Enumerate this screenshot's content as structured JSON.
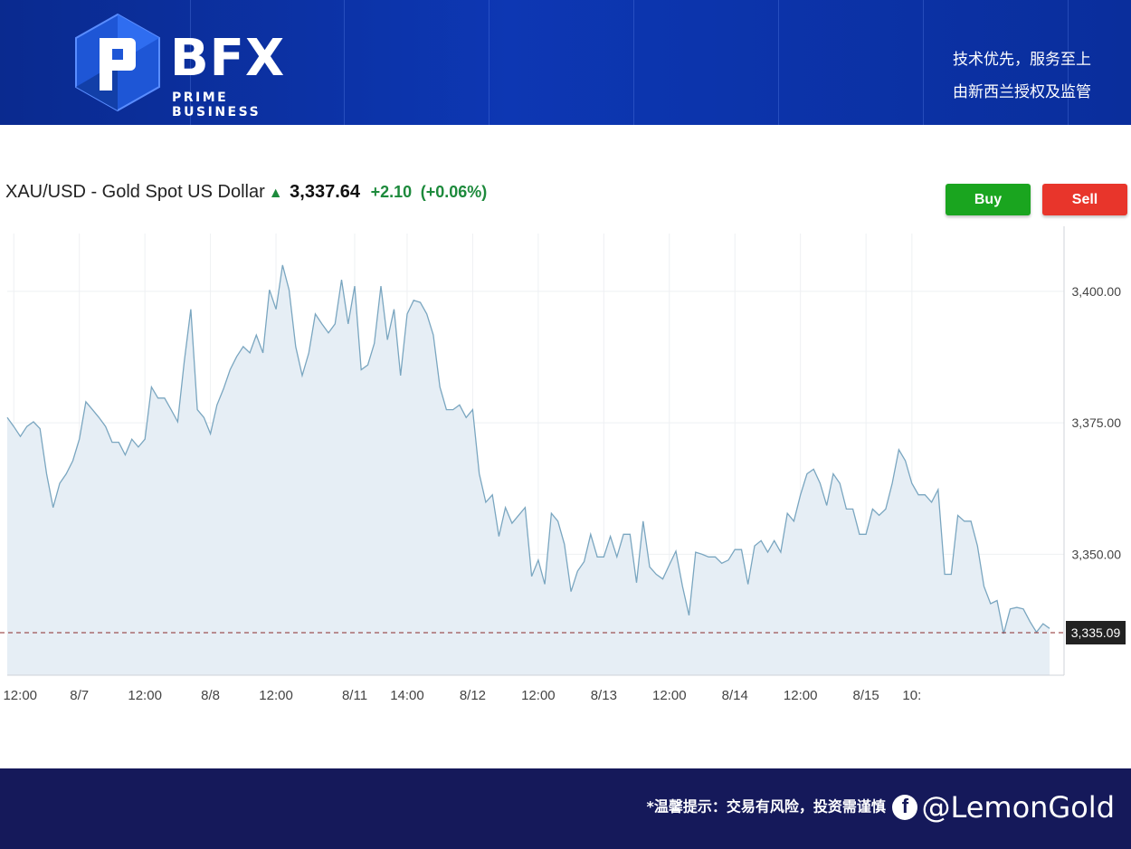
{
  "header": {
    "logo_text": "BFX",
    "logo_sub": "PRIME BUSINESS",
    "slogan_line1": "技术优先，服务至上",
    "slogan_line2": "由新西兰授权及监管"
  },
  "quote": {
    "symbol": "XAU/USD - Gold Spot US Dollar",
    "direction_icon": "up-arrow-icon",
    "price": "3,337.64",
    "change": "+2.10",
    "change_pct": "(+0.06%)",
    "up_color": "#1d8a3c"
  },
  "actions": {
    "buy_label": "Buy",
    "sell_label": "Sell",
    "buy_color": "#1aa51f",
    "sell_color": "#e8352b"
  },
  "chart_data": {
    "type": "area",
    "title": "XAU/USD - Gold Spot US Dollar",
    "y_axis_position": "right",
    "ylim": [
      3327,
      3411
    ],
    "yticks": [
      3350,
      3375,
      3400
    ],
    "ytick_labels": [
      "3,350.00",
      "3,375.00",
      "3,400.00"
    ],
    "xtick_labels": [
      "12:00",
      "8/7",
      "12:00",
      "8/8",
      "12:00",
      "8/11",
      "14:00",
      "8/12",
      "12:00",
      "8/13",
      "12:00",
      "8/14",
      "12:00",
      "8/15",
      "10:"
    ],
    "xtick_index": [
      1,
      11,
      21,
      31,
      41,
      53,
      61,
      71,
      81,
      91,
      101,
      111,
      121,
      131,
      138
    ],
    "current_price_label": "3,335.09",
    "current_price": 3335.09,
    "grid": true,
    "line_color": "#7aa6c0",
    "fill_color": "#e6eef5",
    "series": [
      {
        "values": [
          3376.0,
          3374.3,
          3372.4,
          3374.3,
          3375.2,
          3373.9,
          3365.3,
          3358.9,
          3363.5,
          3365.3,
          3367.8,
          3371.9,
          3379.0,
          3377.5,
          3376.0,
          3374.3,
          3371.3,
          3371.3,
          3368.9,
          3371.9,
          3370.4,
          3371.9,
          3381.8,
          3379.7,
          3379.7,
          3377.5,
          3375.2,
          3386.6,
          3396.6,
          3377.5,
          3376.0,
          3372.9,
          3378.4,
          3381.5,
          3385.1,
          3387.6,
          3389.5,
          3388.3,
          3391.7,
          3388.3,
          3400.3,
          3396.6,
          3405.0,
          3400.3,
          3389.5,
          3384.0,
          3388.3,
          3395.7,
          3393.8,
          3392.1,
          3393.8,
          3402.2,
          3393.8,
          3401.0,
          3385.1,
          3386.0,
          3390.1,
          3401.0,
          3390.8,
          3396.6,
          3384.0,
          3395.7,
          3398.3,
          3397.9,
          3395.7,
          3391.7,
          3381.8,
          3377.5,
          3377.5,
          3378.4,
          3376.0,
          3377.5,
          3365.3,
          3359.9,
          3361.3,
          3353.4,
          3358.9,
          3355.9,
          3357.4,
          3358.9,
          3345.8,
          3348.9,
          3344.3,
          3357.8,
          3356.3,
          3351.9,
          3342.9,
          3346.8,
          3348.6,
          3353.8,
          3349.5,
          3349.5,
          3353.4,
          3349.5,
          3353.8,
          3353.8,
          3344.6,
          3356.3,
          3347.6,
          3346.2,
          3345.3,
          3348.0,
          3350.6,
          3343.9,
          3338.4,
          3350.4,
          3350.0,
          3349.5,
          3349.5,
          3348.3,
          3348.9,
          3350.9,
          3350.9,
          3344.3,
          3351.6,
          3352.6,
          3350.4,
          3352.6,
          3350.4,
          3357.8,
          3356.3,
          3361.3,
          3365.3,
          3366.2,
          3363.5,
          3359.3,
          3365.3,
          3363.5,
          3358.6,
          3358.6,
          3353.8,
          3353.8,
          3358.6,
          3357.4,
          3358.6,
          3363.5,
          3369.9,
          3367.8,
          3363.5,
          3361.3,
          3361.3,
          3359.9,
          3362.3,
          3346.2,
          3346.2,
          3357.4,
          3356.3,
          3356.3,
          3351.6,
          3343.9,
          3340.6,
          3341.2,
          3334.9,
          3339.6,
          3339.9,
          3339.6,
          3337.2,
          3335.2,
          3336.8,
          3335.9
        ]
      }
    ]
  },
  "footer": {
    "tip": "*温馨提示：交易有风险，投资需谨慎",
    "fb_icon": "facebook-icon",
    "handle": "@LemonGold"
  }
}
